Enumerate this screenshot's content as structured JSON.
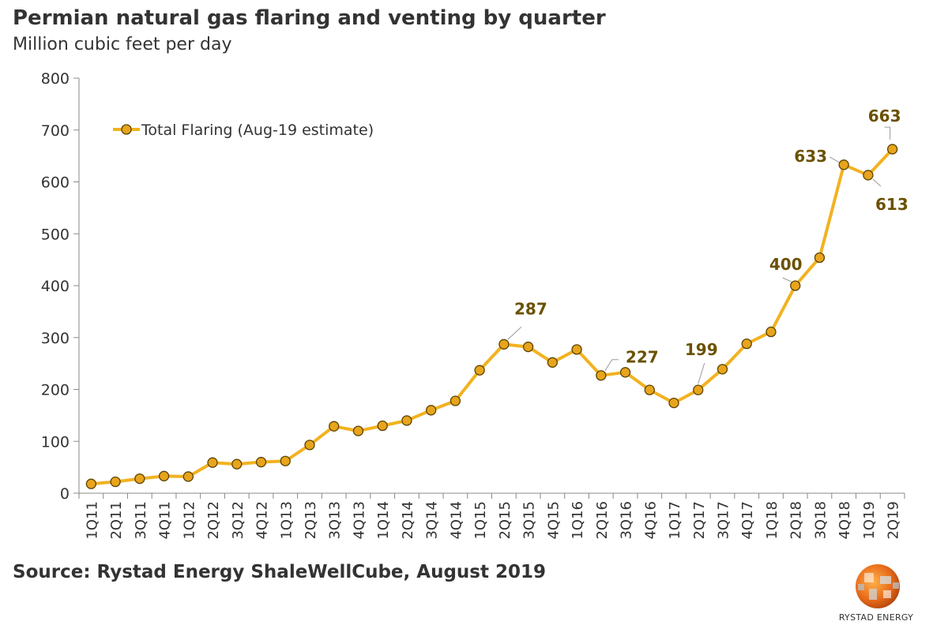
{
  "title": "Permian natural gas flaring and venting by quarter",
  "subtitle": "Million cubic feet per day",
  "source": "Source: Rystad Energy ShaleWellCube, August 2019",
  "logo_text": "RYSTAD ENERGY",
  "colors": {
    "series": "#F2B220",
    "marker_fill": "#E8A41C",
    "marker_stroke": "#5a4300",
    "label": "#6B5100",
    "axis": "#888888"
  },
  "chart_data": {
    "type": "line",
    "title": "Permian natural gas flaring and venting by quarter",
    "ylabel": "Million cubic feet per day",
    "ylim": [
      0,
      800
    ],
    "yticks": [
      0,
      100,
      200,
      300,
      400,
      500,
      600,
      700,
      800
    ],
    "grid": false,
    "legend_position": "top-left",
    "categories": [
      "1Q11",
      "2Q11",
      "3Q11",
      "4Q11",
      "1Q12",
      "2Q12",
      "3Q12",
      "4Q12",
      "1Q13",
      "2Q13",
      "3Q13",
      "4Q13",
      "1Q14",
      "2Q14",
      "3Q14",
      "4Q14",
      "1Q15",
      "2Q15",
      "3Q15",
      "4Q15",
      "1Q16",
      "2Q16",
      "3Q16",
      "4Q16",
      "1Q17",
      "2Q17",
      "3Q17",
      "4Q17",
      "1Q18",
      "2Q18",
      "3Q18",
      "4Q18",
      "1Q19",
      "2Q19"
    ],
    "series": [
      {
        "name": "Total Flaring (Aug-19 estimate)",
        "values": [
          18,
          22,
          28,
          33,
          32,
          59,
          56,
          60,
          62,
          93,
          129,
          120,
          130,
          140,
          160,
          178,
          237,
          287,
          282,
          252,
          277,
          227,
          233,
          199,
          174,
          199,
          239,
          288,
          311,
          400,
          454,
          633,
          613,
          663
        ]
      }
    ],
    "annotations": [
      {
        "category": "2Q15",
        "text": "287"
      },
      {
        "category": "2Q16",
        "text": "227"
      },
      {
        "category": "2Q17",
        "text": "199"
      },
      {
        "category": "2Q18",
        "text": "400"
      },
      {
        "category": "4Q18",
        "text": "633"
      },
      {
        "category": "1Q19",
        "text": "613"
      },
      {
        "category": "2Q19",
        "text": "663"
      }
    ]
  }
}
